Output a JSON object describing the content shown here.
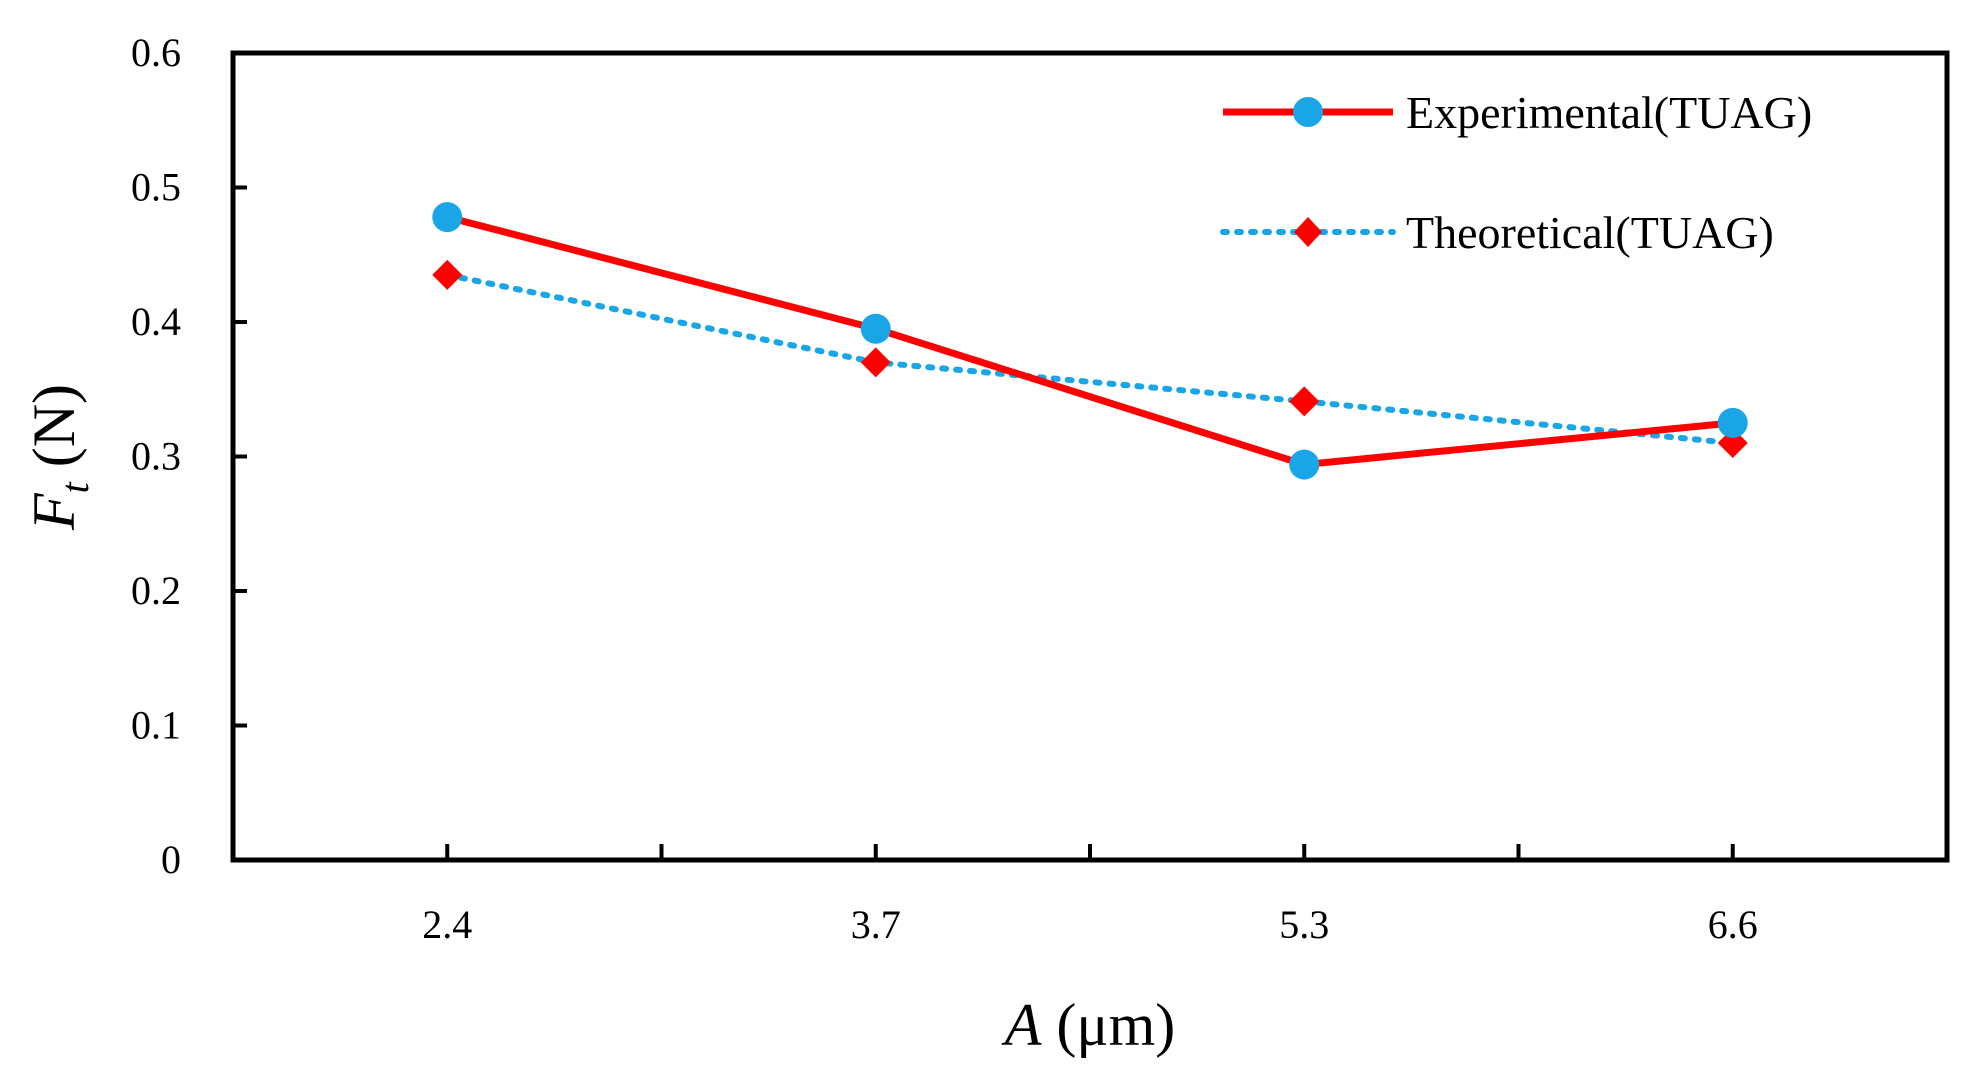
{
  "chart_data": {
    "type": "line",
    "categories": [
      "2.4",
      "3.7",
      "5.3",
      "6.6"
    ],
    "xlabel": {
      "symbol": "A",
      "unit": "(μm)"
    },
    "ylabel": {
      "symbol": "F",
      "subscript": "t",
      "unit": "(N)"
    },
    "ylim": [
      0,
      0.6
    ],
    "yticks": [
      "0",
      "0.1",
      "0.2",
      "0.3",
      "0.4",
      "0.5",
      "0.6"
    ],
    "ytick_values": [
      0,
      0.1,
      0.2,
      0.3,
      0.4,
      0.5,
      0.6
    ],
    "legend_position": "top-right",
    "grid": false,
    "series": [
      {
        "name": "Experimental(TUAG)",
        "values": [
          0.478,
          0.395,
          0.294,
          0.325
        ],
        "line_color": "#ff0000",
        "line_style": "solid",
        "marker": "circle",
        "marker_color": "#1aa6e6"
      },
      {
        "name": "Theoretical(TUAG)",
        "values": [
          0.435,
          0.37,
          0.341,
          0.31
        ],
        "line_color": "#1aa6e6",
        "line_style": "dotted",
        "marker": "diamond",
        "marker_color": "#ff0000"
      }
    ]
  }
}
